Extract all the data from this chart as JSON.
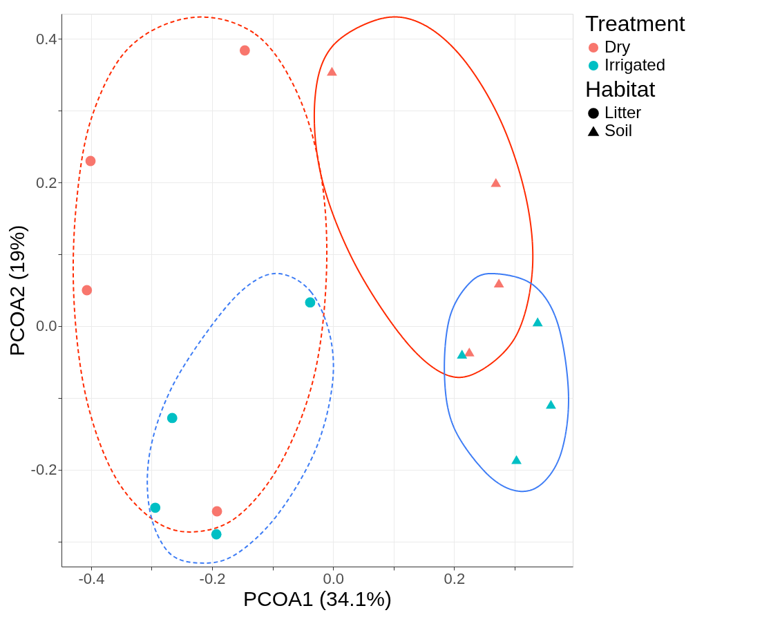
{
  "chart_data": {
    "type": "scatter",
    "xlabel": "PCOA1 (34.1%)",
    "ylabel": "PCOA2 (19%)",
    "legend_title": [
      "Treatment",
      "Habitat"
    ],
    "legend": "right",
    "grid": true,
    "annotations": [
      "Litter",
      "Soil"
    ],
    "xlim": [
      -0.449,
      0.396
    ],
    "ylim": [
      -0.335,
      0.435
    ],
    "xticks": [
      -0.4,
      {
        "value": -0.3,
        "label": null
      },
      -0.2,
      {
        "value": -0.1,
        "label": null
      },
      {
        "value": 0,
        "label": "0.0"
      },
      {
        "value": 0.1,
        "label": null
      },
      0.2,
      {
        "value": 0.3,
        "label": null
      }
    ],
    "yticks": [
      {
        "value": -0.3,
        "label": null
      },
      -0.2,
      {
        "value": -0.1,
        "label": null
      },
      {
        "value": 0,
        "label": "0.0"
      },
      {
        "value": 0.1,
        "label": null
      },
      0.2,
      {
        "value": 0.3,
        "label": null
      },
      0.4
    ],
    "series": [
      {
        "type": "scatter",
        "name": "Dry",
        "marker": "circle",
        "color": "#f8766d",
        "x": [
          -0.146,
          -0.401,
          -0.407,
          -0.192
        ],
        "values": [
          0.384,
          0.23,
          0.05,
          -0.258
        ]
      },
      {
        "type": "scatter",
        "name": "Irrigated",
        "marker": "circle",
        "color": "#00bfc4",
        "x": [
          -0.038,
          -0.266,
          -0.294,
          -0.193
        ],
        "values": [
          0.033,
          -0.128,
          -0.253,
          -0.29
        ]
      },
      {
        "type": "scatter",
        "marker": "triangle",
        "color": "#f8766d",
        "x": [
          -0.002,
          0.269,
          0.274,
          0.225
        ],
        "values": [
          0.355,
          0.2,
          0.06,
          -0.036
        ]
      },
      {
        "type": "scatter",
        "marker": "triangle",
        "color": "#00bfc4",
        "x": [
          0.213,
          0.338,
          0.36,
          0.303
        ],
        "values": [
          -0.039,
          0.006,
          -0.109,
          -0.186
        ]
      }
    ]
  }
}
